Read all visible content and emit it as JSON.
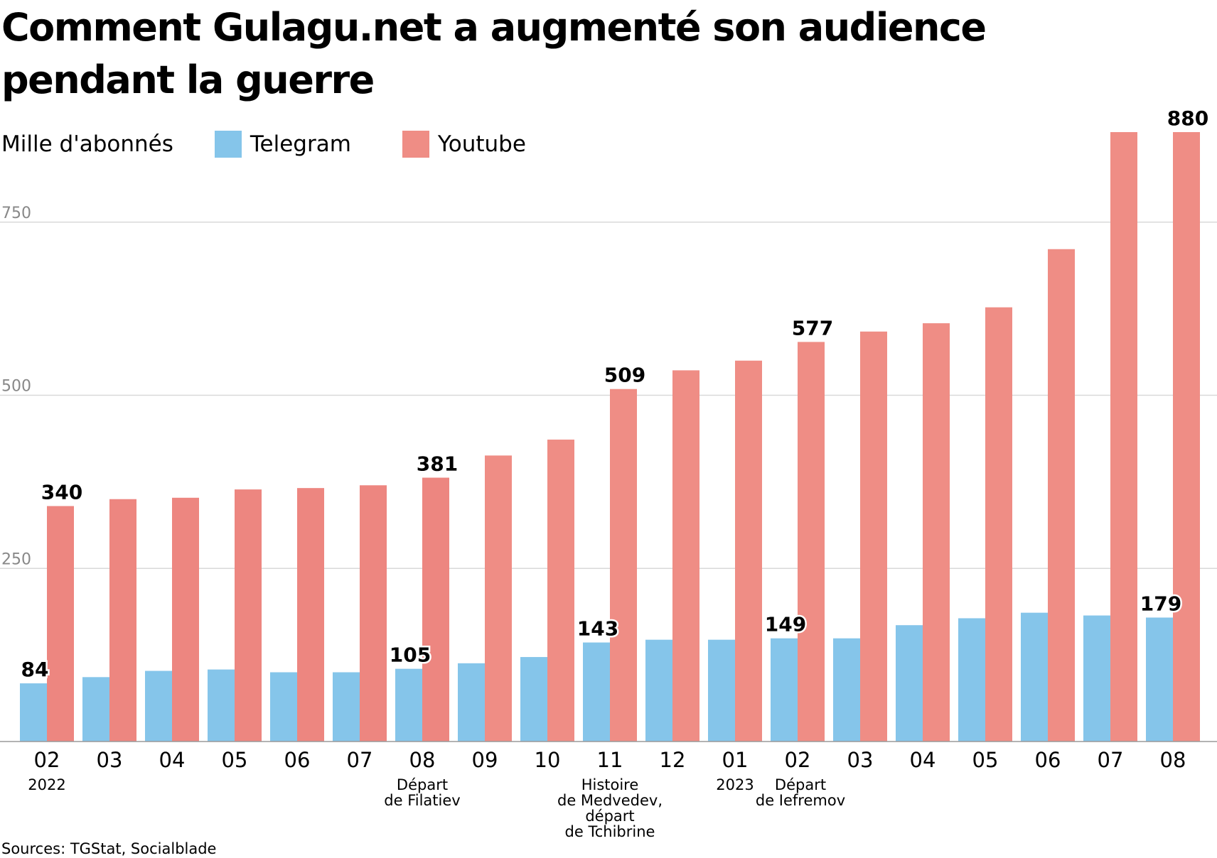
{
  "title": "Comment Gulagu.net a augmenté son audience pendant la guerre",
  "source": "Sources: TGStat, Socialblade",
  "legend": {
    "unit": "Mille d'abonnés"
  },
  "colors": {
    "telegram": "#85c5ea",
    "youtube": "#ef8d85",
    "youtube_dark": "#ed8680",
    "grid": "#d9d9d9",
    "tick": "#888888"
  },
  "chart_data": {
    "type": "bar",
    "ylabel": "Mille d'abonnés",
    "ylim": [
      0,
      1000
    ],
    "yticks": [
      250,
      500,
      750
    ],
    "grid": true,
    "legend_position": "top-left",
    "categories": [
      "02",
      "03",
      "04",
      "05",
      "06",
      "07",
      "08",
      "09",
      "10",
      "11",
      "12",
      "01",
      "02",
      "03",
      "04",
      "05",
      "06",
      "07",
      "08"
    ],
    "year_labels": [
      {
        "index": 0,
        "text": "2022"
      },
      {
        "index": 11,
        "text": "2023"
      }
    ],
    "annotations": [
      {
        "index": 6,
        "text": "Départ\nde Filatiev"
      },
      {
        "index": 9,
        "text": "Histoire\nde Medvedev,\ndépart\nde Tchibrine"
      },
      {
        "index": 12,
        "text": "Départ\nde Iefremov"
      }
    ],
    "series": [
      {
        "name": "Telegram",
        "values": [
          84,
          93,
          102,
          104,
          100,
          100,
          105,
          113,
          122,
          143,
          147,
          147,
          149,
          149,
          168,
          178,
          186,
          182,
          179
        ],
        "labeled_indices": [
          0,
          6,
          9,
          12,
          18
        ]
      },
      {
        "name": "Youtube",
        "values": [
          340,
          350,
          352,
          364,
          366,
          370,
          381,
          413,
          436,
          509,
          536,
          550,
          577,
          592,
          604,
          627,
          711,
          880,
          880
        ],
        "labeled_indices": [
          0,
          6,
          9,
          12,
          18
        ]
      }
    ]
  }
}
